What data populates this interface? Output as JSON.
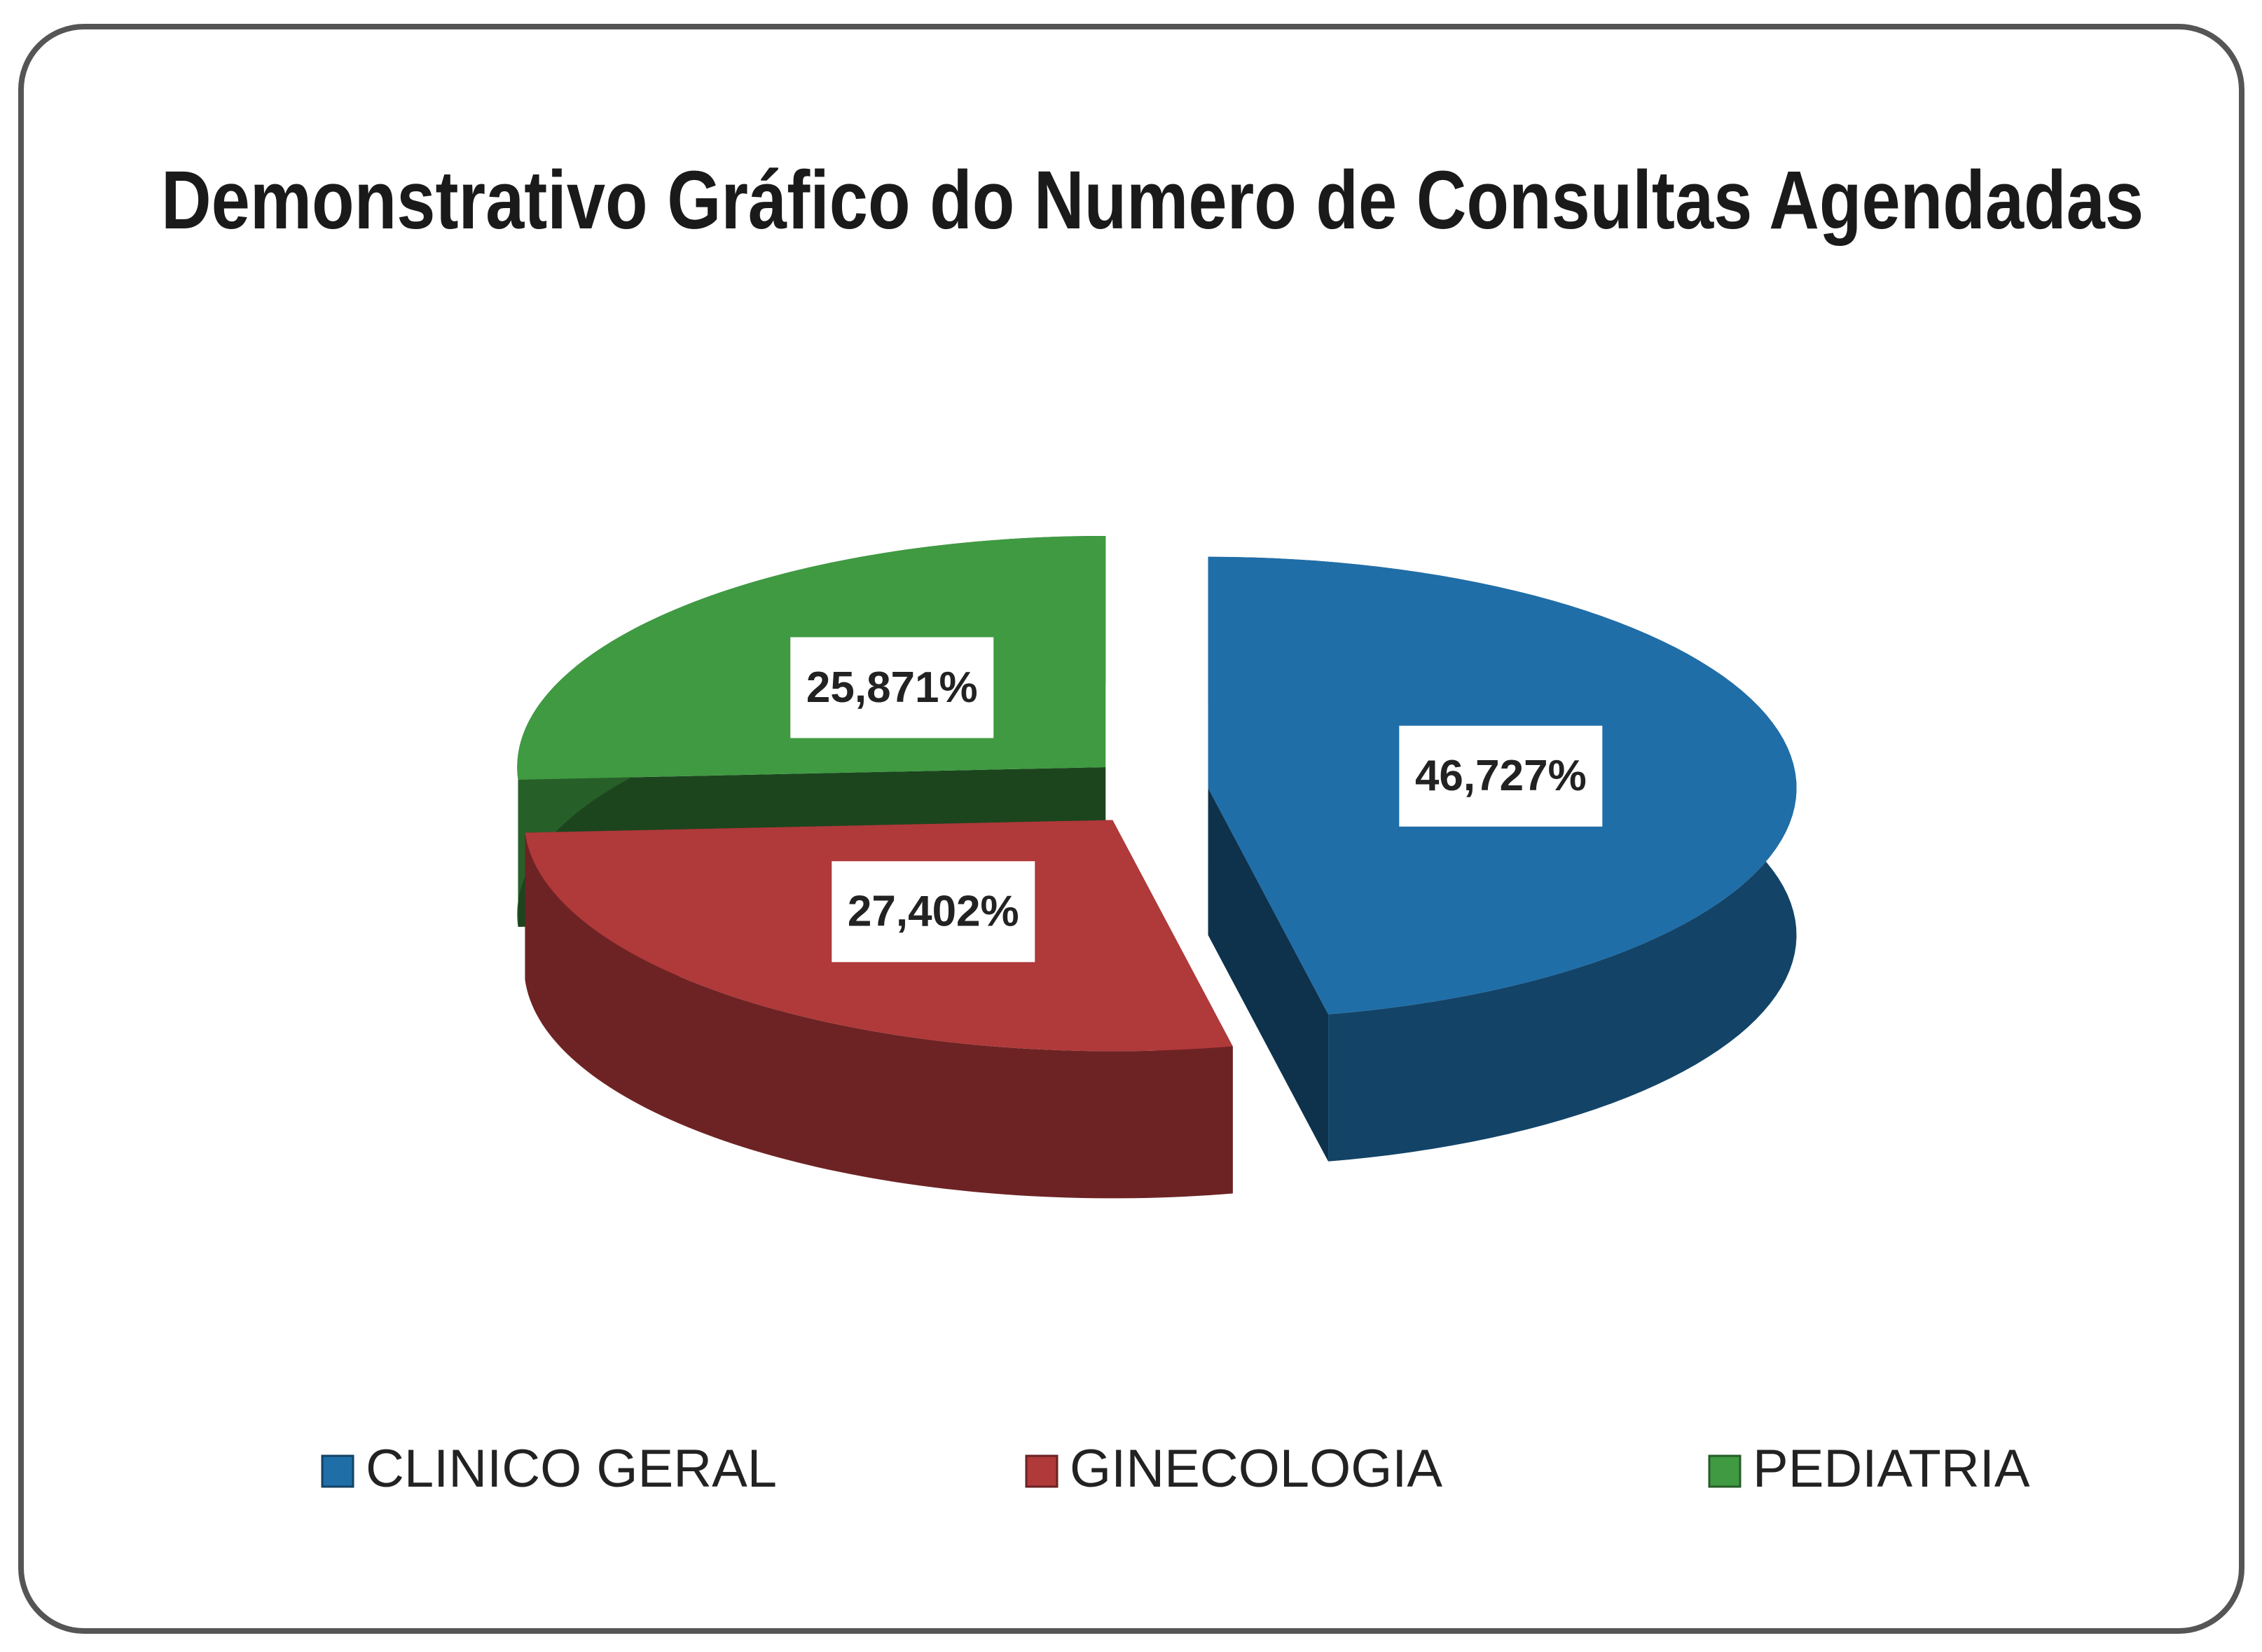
{
  "chart_data": {
    "type": "pie",
    "title": "Demonstrativo Gráfico do Numero de Consultas Agendadas",
    "categories": [
      "CLINICO GERAL",
      "GINECOLOGIA",
      "PEDIATRIA"
    ],
    "values": [
      46.727,
      27.402,
      25.871
    ],
    "value_labels": [
      "46,727%",
      "27,402%",
      "25,871%"
    ],
    "colors": [
      "#1f6ea8",
      "#b0393a",
      "#3f9a42"
    ],
    "legend": "bottom"
  }
}
